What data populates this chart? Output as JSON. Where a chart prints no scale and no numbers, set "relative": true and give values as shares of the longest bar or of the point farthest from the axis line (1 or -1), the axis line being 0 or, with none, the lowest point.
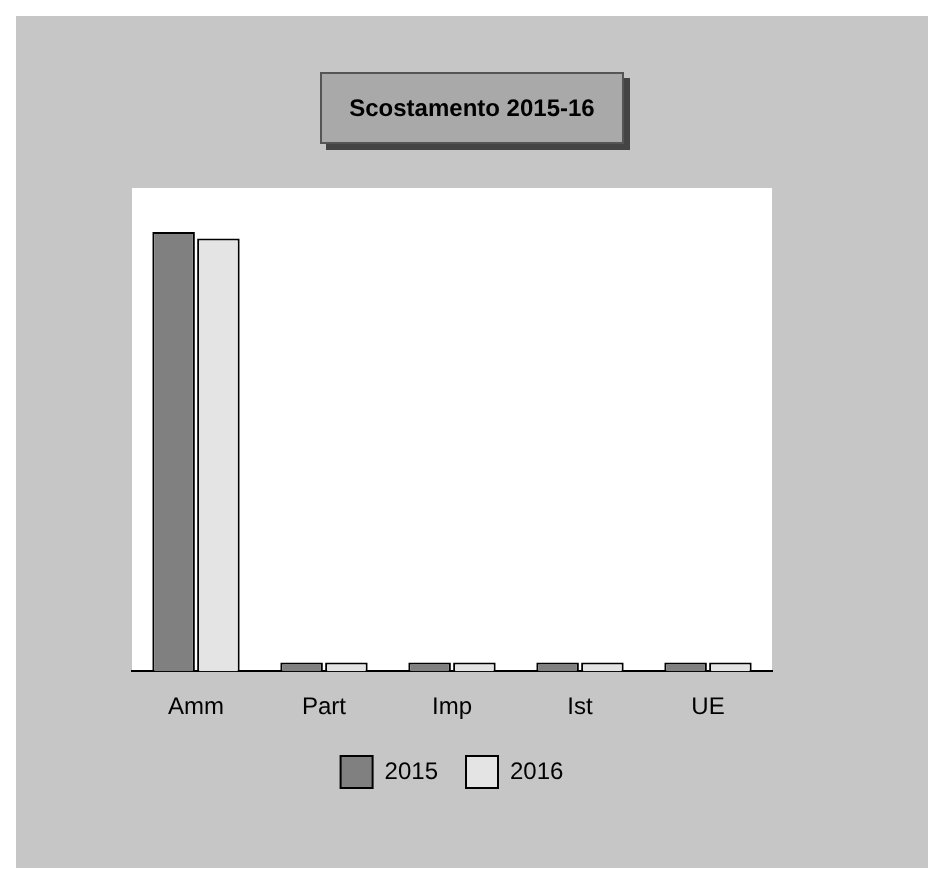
{
  "chart_data": {
    "type": "bar",
    "title": "Scostamento 2015-16",
    "relative": true,
    "categories": [
      "Amm",
      "Part",
      "Imp",
      "Ist",
      "UE"
    ],
    "series": [
      {
        "name": "2015",
        "color": "#808080",
        "values": [
          1,
          0.02,
          0.02,
          0.02,
          0.02
        ]
      },
      {
        "name": "2016",
        "color": "#e4e4e4",
        "values": [
          0.985,
          0.02,
          0.02,
          0.02,
          0.02
        ]
      }
    ],
    "legend": "bottom"
  }
}
